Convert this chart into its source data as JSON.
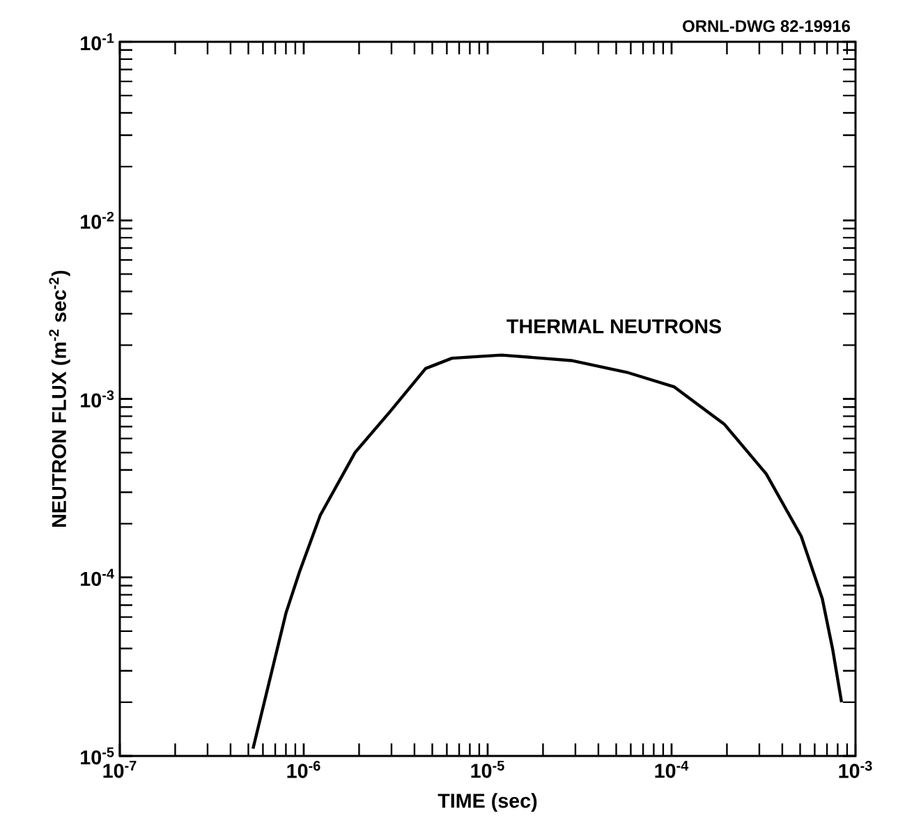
{
  "chart_data": {
    "type": "line",
    "xlabel": "TIME (sec)",
    "ylabel": "NEUTRON FLUX (m$^{-2}$ sec$^{-2}$)",
    "log": "xy",
    "grid": false,
    "marker": "none",
    "line_style": "solid",
    "annotations": [
      "ORNL-DWG 82-19916"
    ],
    "xlim": [
      1e-07,
      0.001
    ],
    "ylim": [
      1e-05,
      0.1
    ],
    "xticks": [
      {
        "value": 1e-07,
        "label": "10$^{-7}$"
      },
      {
        "value": 1e-06,
        "label": "10$^{-6}$"
      },
      {
        "value": 1e-05,
        "label": "10$^{-5}$"
      },
      {
        "value": 0.0001,
        "label": "10$^{-4}$"
      },
      {
        "value": 0.001,
        "label": "10$^{-3}$"
      }
    ],
    "yticks": [
      {
        "value": 1e-05,
        "label": "10$^{-5}$"
      },
      {
        "value": 0.0001,
        "label": "10$^{-4}$"
      },
      {
        "value": 0.001,
        "label": "10$^{-3}$"
      },
      {
        "value": 0.01,
        "label": "10$^{-2}$"
      },
      {
        "value": 0.1,
        "label": "10$^{-1}$"
      }
    ],
    "series": [
      {
        "name": "THERMAL NEUTRONS",
        "color": "#000000",
        "x": [
          5.3e-07,
          8e-07,
          9.5e-07,
          1.23e-06,
          1.9e-06,
          2.95e-06,
          4.6e-06,
          6.4e-06,
          1.19e-05,
          2.85e-05,
          5.7e-05,
          0.000103,
          0.000194,
          0.000327,
          0.000507,
          0.00066,
          0.00075,
          0.00084
        ],
        "values": [
          1.1e-05,
          6.3e-05,
          0.000108,
          0.000223,
          0.0005,
          0.00085,
          0.00148,
          0.00169,
          0.00176,
          0.00164,
          0.00141,
          0.00117,
          0.00072,
          0.00038,
          0.00017,
          7.6e-05,
          4e-05,
          2e-05
        ]
      }
    ]
  }
}
